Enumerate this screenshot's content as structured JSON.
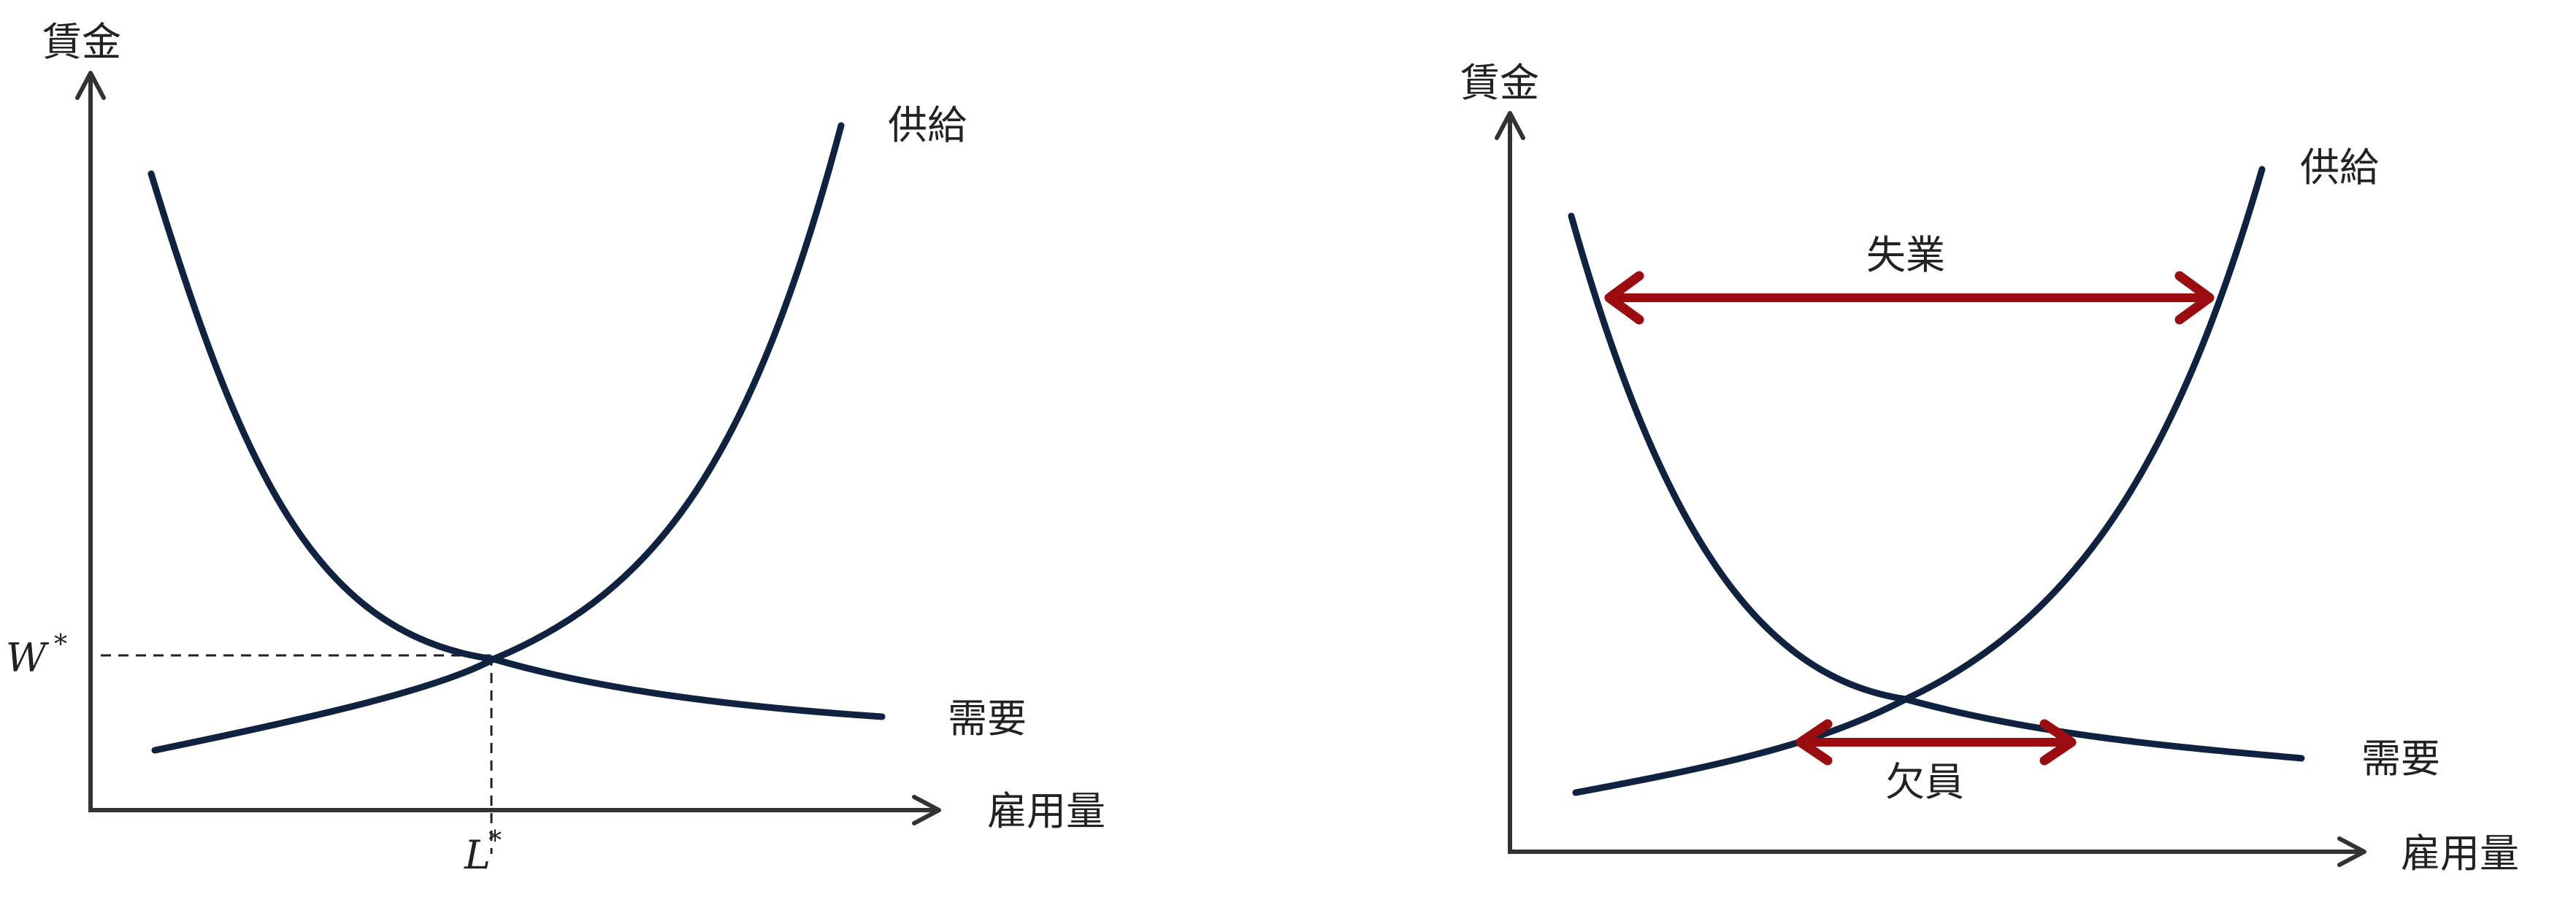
{
  "colors": {
    "curve": "#0f2340",
    "axis": "#333333",
    "arrow": "#9a0c10"
  },
  "left_panel": {
    "y_axis_label": "賃金",
    "x_axis_label": "雇用量",
    "supply_label": "供給",
    "demand_label": "需要",
    "equilibrium_wage_symbol": "W",
    "equilibrium_wage_sup": "*",
    "equilibrium_quantity_symbol": "L",
    "equilibrium_quantity_sup": "*"
  },
  "right_panel": {
    "y_axis_label": "賃金",
    "x_axis_label": "雇用量",
    "supply_label": "供給",
    "demand_label": "需要",
    "upper_gap_label": "失業",
    "lower_gap_label": "欠員"
  }
}
